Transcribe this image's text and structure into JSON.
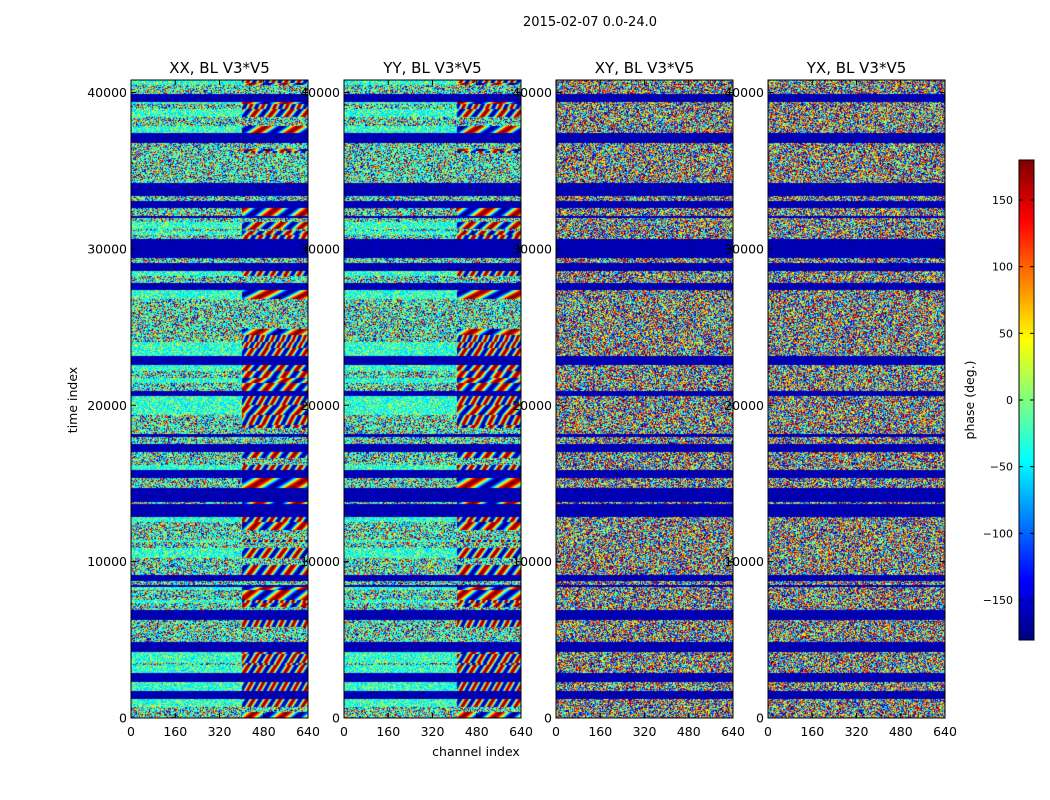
{
  "chart_data": {
    "type": "heatmap",
    "title": "2015-02-07 0.0-24.0",
    "xlabel": "channel index",
    "ylabel": "time index",
    "xlim": [
      0,
      640
    ],
    "ylim": [
      0,
      40800
    ],
    "x_ticks": [
      "0",
      "160",
      "320",
      "480",
      "640"
    ],
    "y_ticks": [
      "0",
      "10000",
      "20000",
      "30000",
      "40000"
    ],
    "panels": [
      {
        "title": "XX, BL V3*V5",
        "pol": "XX",
        "fringe_start_channel": 400
      },
      {
        "title": "YY, BL V3*V5",
        "pol": "YY",
        "fringe_start_channel": 410
      },
      {
        "title": "XY, BL V3*V5",
        "pol": "XY",
        "fringe_start_channel": 0
      },
      {
        "title": "YX, BL V3*V5",
        "pol": "YX",
        "fringe_start_channel": 0
      }
    ],
    "colorbar": {
      "label": "phase (deg.)",
      "range": [
        -180,
        180
      ],
      "ticks": [
        "150",
        "100",
        "50",
        "0",
        "−50",
        "−100",
        "−150"
      ],
      "tick_values": [
        150,
        100,
        50,
        0,
        -50,
        -100,
        -150
      ],
      "colormap": "jet"
    }
  },
  "colors": {
    "jet": [
      "#00007f",
      "#0000ff",
      "#007fff",
      "#00ffff",
      "#7fff7f",
      "#ffff00",
      "#ff7f00",
      "#ff0000",
      "#7f0000"
    ],
    "axis": "#000000"
  }
}
